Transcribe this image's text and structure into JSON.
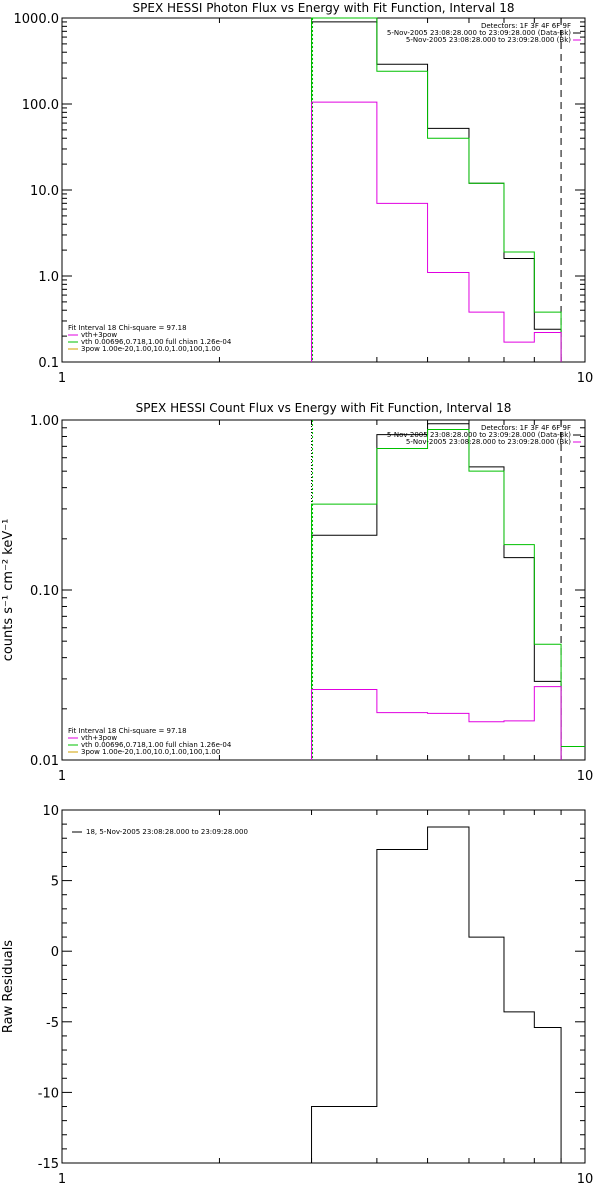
{
  "colors": {
    "data": "#000000",
    "fit": "#00c000",
    "vth": "#00d000",
    "bk": "#e000e0",
    "axis": "#000000"
  },
  "chart_data": [
    {
      "type": "line",
      "title": "SPEX HESSI Photon Flux vs Energy with Fit Function, Interval 18",
      "xlabel": "",
      "ylabel": "",
      "xscale": "log",
      "yscale": "log",
      "xlim": [
        1,
        10
      ],
      "ylim": [
        0.1,
        1000
      ],
      "xticks": [
        {
          "v": 1,
          "label": "1"
        },
        {
          "v": 10,
          "label": "10"
        }
      ],
      "yticks": [
        {
          "v": 0.1,
          "label": "0.1"
        },
        {
          "v": 1,
          "label": "1.0"
        },
        {
          "v": 10,
          "label": "10.0"
        },
        {
          "v": 100,
          "label": "100.0"
        },
        {
          "v": 1000,
          "label": "1000.0"
        }
      ],
      "edges": [
        3,
        4,
        5,
        6,
        7,
        8,
        9
      ],
      "series": [
        {
          "name": "5-Nov-2005 23:08:28.000 to 23:09:28.000 (Data-Bk)",
          "color": "#000000",
          "values": [
            900,
            290,
            52,
            12,
            1.6,
            0.24
          ]
        },
        {
          "name": "vth 0.00696,0.718,1.00",
          "color": "#00c000",
          "values": [
            1000,
            240,
            40,
            12,
            1.9,
            0.38
          ]
        },
        {
          "name": "5-Nov-2005 23:08:28.000 to 23:09:28.000 (Bk)",
          "color": "#e000e0",
          "values": [
            105,
            7,
            1.1,
            0.38,
            0.17,
            0.22
          ]
        }
      ],
      "dotted_x": [
        3,
        3
      ],
      "dashed_x": 9,
      "legend_tr": [
        "Detectors: 1F 3F 4F 6F 9F",
        "5-Nov-2005 23:08:28.000 to 23:09:28.000 (Data-Bk)",
        "5-Nov-2005 23:08:28.000 to 23:09:28.000 (Bk)"
      ],
      "legend_tr_colors": [
        "#000000",
        "#000000",
        "#e000e0"
      ],
      "legend_bl": [
        "Fit Interval 18   Chi-square = 97.18",
        "vth+3pow",
        "vth 0.00696,0.718,1.00   full chian 1.26e-04",
        "3pow 1.00e-20,1.00,10.0,1.00,100,1.00"
      ],
      "legend_bl_colors": [
        "#000000",
        "#e000e0",
        "#00c000",
        "#d0a000"
      ]
    },
    {
      "type": "line",
      "title": "SPEX HESSI Count Flux vs Energy with Fit Function, Interval 18",
      "xlabel": "",
      "ylabel": "counts s⁻¹ cm⁻² keV⁻¹",
      "xscale": "log",
      "yscale": "log",
      "xlim": [
        1,
        10
      ],
      "ylim": [
        0.01,
        1.0
      ],
      "xticks": [
        {
          "v": 1,
          "label": "1"
        },
        {
          "v": 10,
          "label": "10"
        }
      ],
      "yticks": [
        {
          "v": 0.01,
          "label": "0.01"
        },
        {
          "v": 0.1,
          "label": "0.10"
        },
        {
          "v": 1,
          "label": "1.00"
        }
      ],
      "edges": [
        3,
        4,
        5,
        6,
        7,
        8,
        9
      ],
      "series": [
        {
          "name": "5-Nov-2005 23:08:28.000 to 23:09:28.000 (Data-Bk)",
          "color": "#000000",
          "values": [
            0.21,
            0.82,
            0.95,
            0.53,
            0.155,
            0.029
          ]
        },
        {
          "name": "vth 0.00696,0.718,1.00",
          "color": "#00c000",
          "values": [
            0.32,
            0.68,
            0.88,
            0.5,
            0.185,
            0.048
          ]
        },
        {
          "name": "5-Nov-2005 23:08:28.000 to 23:09:28.000 (Bk)",
          "color": "#e000e0",
          "values": [
            0.026,
            0.019,
            0.0188,
            0.0168,
            0.017,
            0.027
          ]
        }
      ],
      "extra_step": {
        "color": "#00c000",
        "x": [
          9,
          10
        ],
        "value": 0.012
      },
      "dotted_x": [
        3,
        3
      ],
      "dashed_x": 9,
      "legend_tr": [
        "Detectors: 1F 3F 4F 6F 9F",
        "5-Nov-2005 23:08:28.000 to 23:09:28.000 (Data-Bk)",
        "5-Nov-2005 23:08:28.000 to 23:09:28.000 (Bk)"
      ],
      "legend_tr_colors": [
        "#000000",
        "#000000",
        "#e000e0"
      ],
      "legend_bl": [
        "Fit Interval 18   Chi-square = 97.18",
        "vth+3pow",
        "vth 0.00696,0.718,1.00   full chian 1.26e-04",
        "3pow 1.00e-20,1.00,10.0,1.00,100,1.00"
      ],
      "legend_bl_colors": [
        "#000000",
        "#e000e0",
        "#00c000",
        "#d0a000"
      ]
    },
    {
      "type": "line",
      "title": "",
      "xlabel": "",
      "ylabel": "Raw Residuals",
      "xscale": "log",
      "yscale": "linear",
      "xlim": [
        1,
        10
      ],
      "ylim": [
        -15,
        10
      ],
      "xticks": [
        {
          "v": 1,
          "label": "1"
        },
        {
          "v": 10,
          "label": "10"
        }
      ],
      "yticks": [
        {
          "v": -15,
          "label": "-15"
        },
        {
          "v": -10,
          "label": "-10"
        },
        {
          "v": -5,
          "label": "-5"
        },
        {
          "v": 0,
          "label": "0"
        },
        {
          "v": 5,
          "label": "5"
        },
        {
          "v": 10,
          "label": "10"
        }
      ],
      "edges": [
        3,
        4,
        5,
        6,
        7,
        8,
        9
      ],
      "series": [
        {
          "name": "18,  5-Nov-2005 23:08:28.000 to 23:09:28.000",
          "color": "#000000",
          "values": [
            -11.0,
            7.2,
            8.8,
            1.0,
            -4.3,
            -5.4
          ]
        }
      ],
      "legend_tl": [
        "18,  5-Nov-2005 23:08:28.000 to 23:09:28.000"
      ]
    }
  ]
}
